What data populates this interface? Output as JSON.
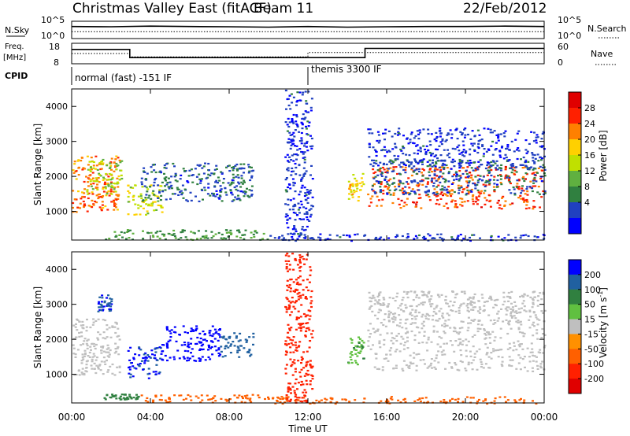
{
  "header": {
    "title": "Christmas Valley East (fitACF)",
    "beam": "Beam 11",
    "date": "22/Feb/2012"
  },
  "sky_panel": {
    "left_label": "N.Sky",
    "right_label": "N.Search",
    "left_ticks": [
      "10^5",
      "10^0"
    ],
    "right_ticks": [
      "10^5",
      "10^0"
    ]
  },
  "freq_panel": {
    "left_label_1": "Freq.",
    "left_label_2": "[MHz]",
    "right_label": "Nave",
    "left_ticks": [
      "18",
      "8"
    ],
    "right_ticks": [
      "60",
      "0"
    ]
  },
  "cpid_panel": {
    "label": "CPID",
    "modes": [
      {
        "name": "normal (fast) -151 IF",
        "start_hour": 0,
        "end_hour": 12
      },
      {
        "name": "themis 3300 IF",
        "start_hour": 12,
        "end_hour": 24
      }
    ]
  },
  "chart_data": [
    {
      "type": "line",
      "title": "N.Sky / N.Search",
      "x_unit": "hours UT",
      "series": [
        {
          "name": "N.Sky",
          "x": [
            0,
            2,
            4,
            6,
            8,
            10,
            12,
            14,
            16,
            18,
            20,
            22,
            24
          ],
          "values": [
            3000,
            2500,
            4000,
            3000,
            2500,
            2000,
            3000,
            2000,
            2500,
            3000,
            3000,
            4000,
            3000
          ]
        },
        {
          "name": "N.Search",
          "x": [
            0,
            2,
            4,
            6,
            8,
            10,
            12,
            14,
            16,
            18,
            20,
            22,
            24
          ],
          "values": [
            100,
            100,
            100,
            100,
            100,
            100,
            100,
            100,
            100,
            100,
            100,
            100,
            100
          ]
        }
      ],
      "xlim": [
        0,
        24
      ],
      "ylim": [
        1,
        100000
      ],
      "y_scale": "log"
    },
    {
      "type": "line",
      "title": "Freq. / Nave",
      "x_unit": "hours UT",
      "series": [
        {
          "name": "Freq.",
          "x": [
            0,
            2.95,
            2.95,
            14.9,
            14.9,
            24
          ],
          "values": [
            15,
            15,
            11,
            11,
            15.5,
            15.5
          ]
        },
        {
          "name": "Nave",
          "x": [
            0,
            2.95,
            2.95,
            12,
            12,
            24
          ],
          "values": [
            30,
            30,
            20,
            20,
            33,
            33
          ]
        }
      ],
      "xlim": [
        0,
        24
      ],
      "ylim_freq": [
        8,
        18
      ],
      "ylim_nave": [
        0,
        60
      ]
    },
    {
      "type": "heatmap",
      "title": "Power",
      "ylabel": "Slant Range [km]",
      "xlim": [
        0,
        24
      ],
      "ylim": [
        180,
        4500
      ],
      "yticks": [
        1000,
        2000,
        3000,
        4000
      ],
      "colorbar": {
        "label": "Power [dB]",
        "ticks": [
          4,
          8,
          12,
          16,
          20,
          24,
          28
        ],
        "range": [
          0,
          30
        ],
        "colors": [
          "#0000ff",
          "#2040c0",
          "#308040",
          "#60b040",
          "#c0e000",
          "#ffd000",
          "#ff8000",
          "#ff2000",
          "#e00000"
        ]
      },
      "bands": [
        {
          "t0": 0.0,
          "t1": 2.4,
          "r0": 1000,
          "r1": 2600,
          "dB": 22
        },
        {
          "t0": 0.7,
          "t1": 2.5,
          "r0": 1500,
          "r1": 2500,
          "dB": 14
        },
        {
          "t0": 2.8,
          "t1": 4.6,
          "r0": 900,
          "r1": 1800,
          "dB": 16
        },
        {
          "t0": 3.5,
          "t1": 9.2,
          "r0": 1300,
          "r1": 2400,
          "dB": 6
        },
        {
          "t0": 1.5,
          "t1": 10.0,
          "r0": 200,
          "r1": 500,
          "dB": 10
        },
        {
          "t0": 10.0,
          "t1": 24.0,
          "r0": 180,
          "r1": 380,
          "dB": 4
        },
        {
          "t0": 14.0,
          "t1": 14.8,
          "r0": 1300,
          "r1": 2100,
          "dB": 18
        },
        {
          "t0": 15.0,
          "t1": 24.0,
          "r0": 1100,
          "r1": 2300,
          "dB": 24
        },
        {
          "t0": 15.2,
          "t1": 24.0,
          "r0": 1500,
          "r1": 2500,
          "dB": 6
        },
        {
          "t0": 15.0,
          "t1": 24.0,
          "r0": 2300,
          "r1": 3400,
          "dB": 4
        },
        {
          "t0": 10.8,
          "t1": 12.2,
          "r0": 200,
          "r1": 4500,
          "dB": 4
        }
      ]
    },
    {
      "type": "heatmap",
      "title": "Velocity",
      "ylabel": "Slant Range [km]",
      "xlabel": "Time UT",
      "xlim": [
        0,
        24
      ],
      "ylim": [
        180,
        4500
      ],
      "yticks": [
        1000,
        2000,
        3000,
        4000
      ],
      "xticks": [
        "00:00",
        "04:00",
        "08:00",
        "12:00",
        "16:00",
        "20:00",
        "00:00"
      ],
      "xtick_hours": [
        0,
        4,
        8,
        12,
        16,
        20,
        24
      ],
      "colorbar": {
        "label": "Velocity [m s^-1]",
        "ticks": [
          200,
          100,
          50,
          15,
          -15,
          -50,
          -100,
          -200
        ],
        "colors": [
          "#0000ff",
          "#2060a0",
          "#308040",
          "#60c040",
          "#bfbfbf",
          "#ff9000",
          "#ff6000",
          "#ff2000",
          "#e00000"
        ]
      },
      "bands": [
        {
          "t0": 0.0,
          "t1": 2.4,
          "r0": 1000,
          "r1": 2600,
          "v": 0
        },
        {
          "t0": 1.3,
          "t1": 2.0,
          "r0": 2800,
          "r1": 3300,
          "v": 150
        },
        {
          "t0": 2.8,
          "t1": 4.6,
          "r0": 900,
          "r1": 1800,
          "v": 150
        },
        {
          "t0": 4.5,
          "t1": 7.5,
          "r0": 1400,
          "r1": 2400,
          "v": 220
        },
        {
          "t0": 7.5,
          "t1": 9.2,
          "r0": 1500,
          "r1": 2200,
          "v": 100
        },
        {
          "t0": 1.5,
          "t1": 3.5,
          "r0": 300,
          "r1": 450,
          "v": 40
        },
        {
          "t0": 3.5,
          "t1": 10.0,
          "r0": 200,
          "r1": 450,
          "v": -60
        },
        {
          "t0": 10.0,
          "t1": 24.0,
          "r0": 180,
          "r1": 380,
          "v": -80
        },
        {
          "t0": 14.0,
          "t1": 14.8,
          "r0": 1300,
          "r1": 2100,
          "v": 30
        },
        {
          "t0": 15.0,
          "t1": 24.0,
          "r0": 1100,
          "r1": 2500,
          "v": 0
        },
        {
          "t0": 15.0,
          "t1": 24.0,
          "r0": 2500,
          "r1": 3400,
          "v": 0
        },
        {
          "t0": 10.8,
          "t1": 12.2,
          "r0": 200,
          "r1": 4500,
          "v": -150
        }
      ]
    }
  ],
  "bottom_axis": {
    "xlabel": "Time UT",
    "ticks": [
      "00:00",
      "04:00",
      "08:00",
      "12:00",
      "16:00",
      "20:00",
      "00:00"
    ]
  },
  "power_colorbar_labels": [
    "28",
    "24",
    "20",
    "16",
    "12",
    "8",
    "4"
  ],
  "velocity_colorbar_labels": [
    "200",
    "100",
    "50",
    "15",
    "-15",
    "-50",
    "-100",
    "-200"
  ],
  "range_ticks": [
    "1000",
    "2000",
    "3000",
    "4000"
  ],
  "power_cb_label": "Power [dB]",
  "velocity_cb_label": "Velocity [m s",
  "velocity_cb_sup": "-1",
  "velocity_cb_end": "]",
  "ylabel_top": "Slant Range [km]",
  "ylabel_bottom": "Slant Range [km]"
}
